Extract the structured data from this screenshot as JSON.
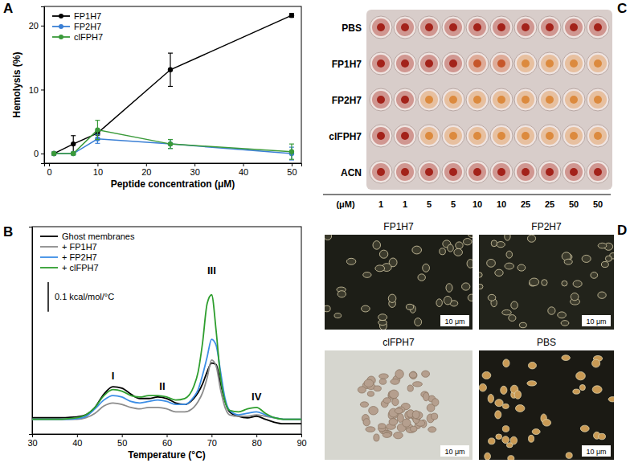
{
  "chart_data": [
    {
      "title": "A",
      "type": "line",
      "x_label": "Peptide concentration (μM)",
      "y_label": "Hemolysis (%)",
      "x": [
        1,
        5,
        10,
        25,
        50
      ],
      "series": [
        {
          "name": "FP1H7",
          "color": "#000000",
          "marker": "circle",
          "values": [
            0,
            1.5,
            3.2,
            13.1,
            21.6
          ],
          "errors": [
            0.2,
            1.3,
            0.3,
            2.6,
            0.3
          ]
        },
        {
          "name": "FP2H7",
          "color": "#3a7fd5",
          "marker": "circle",
          "values": [
            0,
            0,
            2.3,
            1.5,
            0
          ],
          "errors": [
            0.1,
            0.2,
            0.7,
            0.7,
            1
          ]
        },
        {
          "name": "clFPH7",
          "color": "#3a9a3a",
          "marker": "circle",
          "values": [
            0,
            0,
            3.7,
            1.5,
            0.3
          ],
          "errors": [
            0.1,
            0.2,
            1.5,
            0.7,
            1.2
          ]
        }
      ],
      "xlim": [
        -1,
        52
      ],
      "xticks": [
        0,
        10,
        20,
        30,
        40,
        50
      ],
      "ylim": [
        -1.5,
        23
      ],
      "yticks": [
        0,
        10,
        20
      ],
      "legend": "upper left"
    },
    {
      "title": "B",
      "type": "line",
      "x_label": "Temperature (°C)",
      "x": [
        30,
        32,
        34,
        36,
        38,
        40,
        42,
        44,
        46,
        48,
        50,
        52,
        54,
        56,
        58,
        60,
        62,
        64,
        66,
        67,
        68,
        69,
        70,
        71,
        72,
        73,
        74,
        76,
        78,
        80,
        82,
        84,
        86,
        88,
        90
      ],
      "series": [
        {
          "name": "Ghost membranes",
          "color": "#000000",
          "values": [
            0.105,
            0.105,
            0.105,
            0.105,
            0.106,
            0.108,
            0.115,
            0.14,
            0.185,
            0.21,
            0.205,
            0.185,
            0.17,
            0.17,
            0.175,
            0.17,
            0.155,
            0.15,
            0.17,
            0.19,
            0.22,
            0.26,
            0.29,
            0.285,
            0.22,
            0.16,
            0.125,
            0.11,
            0.105,
            0.11,
            0.1,
            0.09,
            0.085,
            0.085,
            0.085
          ]
        },
        {
          "name": "+ FP1H7",
          "color": "#8c8c8c",
          "values": [
            0.1,
            0.1,
            0.1,
            0.1,
            0.1,
            0.1,
            0.105,
            0.12,
            0.145,
            0.155,
            0.15,
            0.14,
            0.135,
            0.14,
            0.14,
            0.135,
            0.125,
            0.125,
            0.14,
            0.16,
            0.19,
            0.24,
            0.3,
            0.28,
            0.2,
            0.14,
            0.115,
            0.11,
            0.11,
            0.115,
            0.11,
            0.105,
            0.1,
            0.1,
            0.1
          ]
        },
        {
          "name": "+ FP2H7",
          "color": "#3c8ee6",
          "values": [
            0.1,
            0.1,
            0.1,
            0.1,
            0.1,
            0.102,
            0.11,
            0.135,
            0.165,
            0.18,
            0.175,
            0.16,
            0.155,
            0.16,
            0.165,
            0.16,
            0.15,
            0.15,
            0.175,
            0.2,
            0.25,
            0.31,
            0.37,
            0.35,
            0.26,
            0.17,
            0.13,
            0.115,
            0.12,
            0.125,
            0.115,
            0.105,
            0.1,
            0.1,
            0.1
          ]
        },
        {
          "name": "+ clFPH7",
          "color": "#2e9e2e",
          "values": [
            0.1,
            0.1,
            0.1,
            0.1,
            0.102,
            0.105,
            0.115,
            0.14,
            0.18,
            0.2,
            0.195,
            0.18,
            0.175,
            0.18,
            0.18,
            0.175,
            0.165,
            0.17,
            0.21,
            0.26,
            0.36,
            0.49,
            0.52,
            0.4,
            0.24,
            0.16,
            0.13,
            0.125,
            0.135,
            0.14,
            0.12,
            0.105,
            0.1,
            0.1,
            0.1
          ]
        }
      ],
      "xlim": [
        30,
        90
      ],
      "xticks": [
        30,
        40,
        50,
        60,
        70,
        80,
        90
      ],
      "ylim": [
        0.05,
        0.75
      ],
      "tick_labels": "x",
      "legend": "upper left",
      "scale_bar": {
        "value": 0.1,
        "label": "0.1 kcal/mol/°C"
      },
      "annotations": [
        {
          "text": "I",
          "x": 48,
          "y": 0.235
        },
        {
          "text": "II",
          "x": 59,
          "y": 0.2
        },
        {
          "text": "III",
          "x": 70,
          "y": 0.59
        },
        {
          "text": "IV",
          "x": 80,
          "y": 0.165
        }
      ]
    }
  ],
  "plate": {
    "title": "C",
    "rows": [
      {
        "label": "PBS",
        "colors": [
          "#a3221a",
          "#a3221a",
          "#a3221a",
          "#a3221a",
          "#a3221a",
          "#a3221a",
          "#a3221a",
          "#a3221a",
          "#a3221a",
          "#a3221a"
        ]
      },
      {
        "label": "FP1H7",
        "colors": [
          "#a3221a",
          "#a3221a",
          "#a3221a",
          "#a3221a",
          "#c6562a",
          "#c6562a",
          "#dc8a3e",
          "#dc8a3e",
          "#dc8a3e",
          "#dc8a3e"
        ]
      },
      {
        "label": "FP2H7",
        "colors": [
          "#a3221a",
          "#a3221a",
          "#dc8a3e",
          "#dc8a3e",
          "#dc8a3e",
          "#dc8a3e",
          "#dc8a3e",
          "#dc8a3e",
          "#dc8a3e",
          "#dc8a3e"
        ]
      },
      {
        "label": "clFPH7",
        "colors": [
          "#a3221a",
          "#a3221a",
          "#dc8a3e",
          "#dc8a3e",
          "#dc8a3e",
          "#dc8a3e",
          "#dc8a3e",
          "#dc8a3e",
          "#dc8a3e",
          "#dc8a3e"
        ]
      },
      {
        "label": "ACN",
        "colors": [
          "#a3221a",
          "#a3221a",
          "#a3221a",
          "#a3221a",
          "#a3221a",
          "#a3221a",
          "#a3221a",
          "#a3221a",
          "#a3221a",
          "#a3221a"
        ]
      }
    ],
    "columns": [
      1,
      1,
      5,
      5,
      10,
      10,
      25,
      25,
      50,
      50
    ],
    "column_title": "(μM)"
  },
  "micrographs": {
    "title": "D",
    "scale_bar": "10 μm",
    "images": [
      {
        "name": "FP1H7",
        "color": "#1d1e17"
      },
      {
        "name": "FP2H7",
        "color": "#22231b"
      },
      {
        "name": "clFPH7",
        "color": "#d6d6cf"
      },
      {
        "name": "PBS",
        "color": "#1b1a14"
      }
    ]
  }
}
